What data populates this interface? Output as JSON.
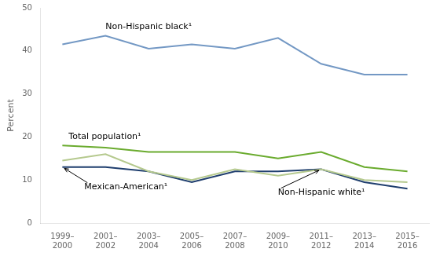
{
  "chart_data": {
    "type": "line",
    "y_label": "Percent",
    "categories": [
      "1999–\n2000",
      "2001–\n2002",
      "2003–\n2004",
      "2005–\n2006",
      "2007–\n2008",
      "2009–\n2010",
      "2011–\n2012",
      "2013–\n2014",
      "2015–\n2016"
    ],
    "series": [
      {
        "name": "Non-Hispanic black¹",
        "color": "#7398c4",
        "values": [
          41.5,
          43.5,
          40.5,
          41.5,
          40.5,
          43.0,
          37.0,
          34.5,
          34.5
        ]
      },
      {
        "name": "Total population¹",
        "color": "#6aab2e",
        "values": [
          18.0,
          17.5,
          16.5,
          16.5,
          16.5,
          15.0,
          16.5,
          13.0,
          12.0
        ]
      },
      {
        "name": "Non-Hispanic white¹",
        "color": "#b5c98e",
        "values": [
          14.5,
          16.0,
          12.0,
          10.0,
          12.5,
          11.0,
          12.5,
          10.0,
          9.5
        ]
      },
      {
        "name": "Mexican-American¹",
        "color": "#1f3e6e",
        "values": [
          13.0,
          13.0,
          12.0,
          9.5,
          12.0,
          12.0,
          12.5,
          9.5,
          8.0
        ]
      }
    ],
    "ylim": [
      0,
      50
    ],
    "yticks": [
      0,
      10,
      20,
      30,
      40,
      50
    ],
    "grid": false
  }
}
